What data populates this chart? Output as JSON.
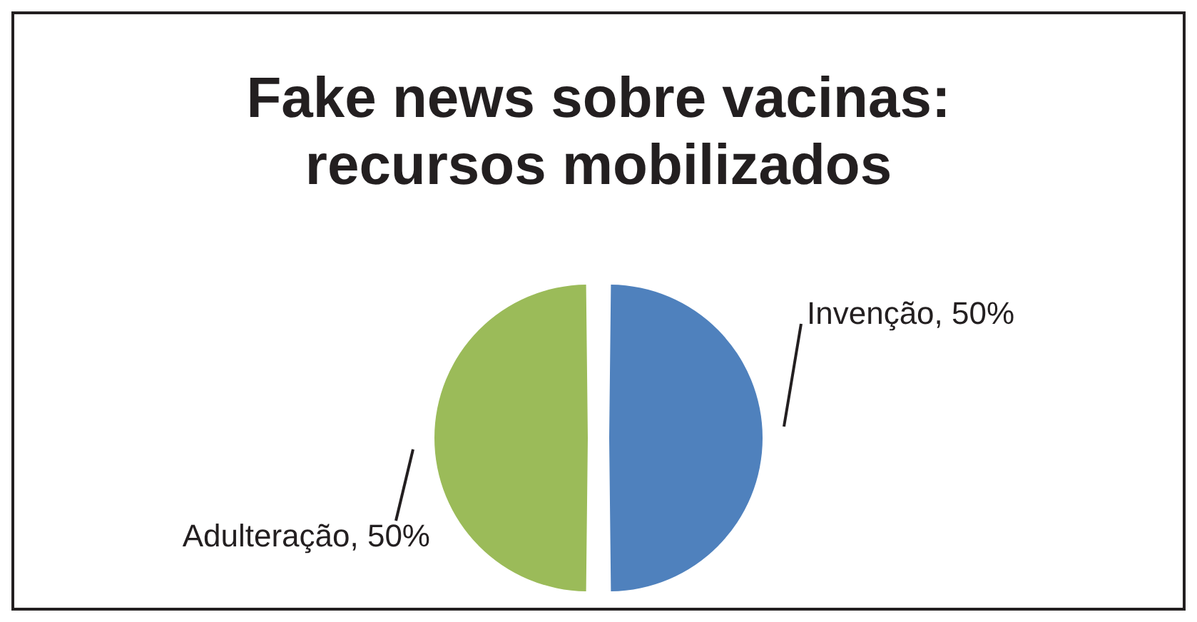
{
  "chart_data": {
    "type": "pie",
    "title": "Fake news sobre vacinas: recursos mobilizados",
    "categories": [
      "Invenção",
      "Adulteração"
    ],
    "values": [
      50,
      50
    ],
    "value_labels": [
      "50%",
      "50%"
    ],
    "colors": [
      "#4f81bd",
      "#9bbb59"
    ],
    "data_labels": true,
    "legend": false
  }
}
